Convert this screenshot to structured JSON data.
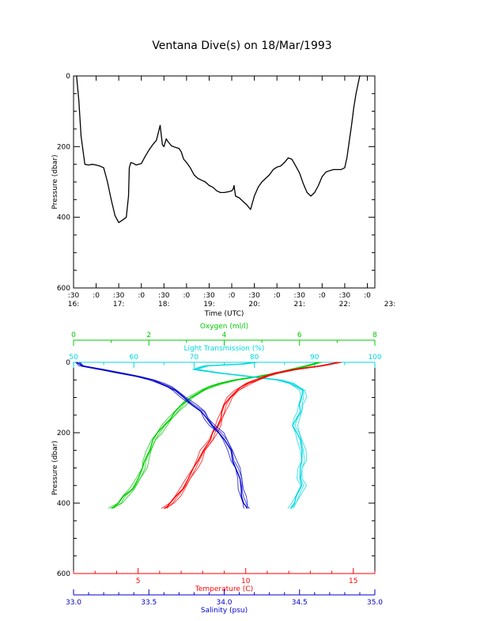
{
  "title": "Ventana Dive(s) on 18/Mar/1993",
  "chart_data": [
    {
      "type": "line",
      "xlabel": "Time (UTC)",
      "ylabel": "Pressure (dbar)",
      "ylim": [
        600,
        0
      ],
      "y_inverted": true,
      "xlim": [
        "16:30",
        "23:10"
      ],
      "x_minor_labels": [
        ":30",
        ":0",
        ":30",
        ":0",
        ":30",
        ":0",
        ":30",
        ":0",
        ":30",
        ":0",
        ":30",
        ":0",
        ":30",
        ":0"
      ],
      "x_hour_labels": [
        "16:",
        "17:",
        "18:",
        "19:",
        "20:",
        "21:",
        "22:",
        "23:"
      ],
      "y_ticks": [
        "0",
        "200",
        "400",
        "600"
      ],
      "series": [
        {
          "color": "#000000",
          "x": [
            "16:34",
            "16:37",
            "16:40",
            "16:45",
            "16:50",
            "16:55",
            "17:00",
            "17:05",
            "17:10",
            "17:15",
            "17:20",
            "17:25",
            "17:30",
            "17:35",
            "17:40",
            "17:43",
            "17:44",
            "17:46",
            "17:50",
            "17:53",
            "17:56",
            "18:00",
            "18:05",
            "18:10",
            "18:15",
            "18:20",
            "18:25",
            "18:28",
            "18:30",
            "18:33",
            "18:35",
            "18:40",
            "18:45",
            "18:50",
            "18:53",
            "18:56",
            "19:00",
            "19:05",
            "19:10",
            "19:15",
            "19:20",
            "19:25",
            "19:30",
            "19:35",
            "19:40",
            "19:45",
            "19:50",
            "19:55",
            "20:00",
            "20:02",
            "20:03",
            "20:05",
            "20:10",
            "20:15",
            "20:20",
            "20:25",
            "20:30",
            "20:35",
            "20:40",
            "20:45",
            "20:50",
            "20:55",
            "21:00",
            "21:05",
            "21:10",
            "21:15",
            "21:20",
            "21:25",
            "21:30",
            "21:35",
            "21:40",
            "21:45",
            "21:50",
            "21:55",
            "22:00",
            "22:05",
            "22:10",
            "22:15",
            "22:20",
            "22:25",
            "22:30",
            "22:33",
            "22:36",
            "22:39",
            "22:42",
            "22:45",
            "22:48",
            "22:50",
            "22:51"
          ],
          "y": [
            0,
            70,
            170,
            250,
            252,
            250,
            252,
            255,
            260,
            300,
            350,
            395,
            415,
            408,
            400,
            340,
            260,
            245,
            248,
            252,
            250,
            248,
            228,
            210,
            195,
            182,
            140,
            195,
            200,
            178,
            185,
            198,
            202,
            205,
            215,
            235,
            245,
            260,
            280,
            290,
            295,
            300,
            310,
            315,
            325,
            330,
            330,
            328,
            325,
            320,
            310,
            340,
            345,
            355,
            365,
            378,
            340,
            315,
            300,
            290,
            280,
            265,
            258,
            255,
            245,
            232,
            236,
            255,
            275,
            305,
            330,
            340,
            330,
            310,
            285,
            272,
            268,
            265,
            265,
            265,
            260,
            230,
            185,
            140,
            90,
            50,
            20,
            0,
            0
          ]
        }
      ]
    },
    {
      "type": "line",
      "ylabel": "Pressure (dbar)",
      "ylim": [
        600,
        0
      ],
      "y_inverted": true,
      "y_ticks": [
        "0",
        "200",
        "400",
        "600"
      ],
      "axes": [
        {
          "label": "Oxygen (ml/l)",
          "color": "#00cc00",
          "range": [
            0,
            8
          ],
          "ticks": [
            "0",
            "2",
            "4",
            "6",
            "8"
          ],
          "position": "top-1"
        },
        {
          "label": "Light Transmission (%)",
          "color": "#00d8e0",
          "range": [
            50,
            100
          ],
          "ticks": [
            "50",
            "60",
            "70",
            "80",
            "90",
            "100"
          ],
          "position": "top-2"
        },
        {
          "label": "Temperature (C)",
          "color": "#ff0000",
          "range": [
            2,
            16
          ],
          "ticks": [
            "5",
            "10",
            "15"
          ],
          "position": "bottom-1"
        },
        {
          "label": "Salinity (psu)",
          "color": "#0000cc",
          "range": [
            33.0,
            35.0
          ],
          "ticks": [
            "33.0",
            "33.5",
            "34.0",
            "34.5",
            "35.0"
          ],
          "position": "bottom-2"
        }
      ],
      "series": [
        {
          "axis": "Oxygen (ml/l)",
          "color": "#00cc00",
          "pressure": [
            0,
            10,
            20,
            30,
            40,
            50,
            60,
            70,
            80,
            100,
            120,
            140,
            160,
            180,
            200,
            220,
            250,
            280,
            300,
            330,
            360,
            380,
            400,
            410,
            415
          ],
          "values": [
            6.5,
            6.2,
            5.8,
            5.4,
            4.9,
            4.3,
            3.9,
            3.6,
            3.4,
            3.1,
            2.9,
            2.7,
            2.55,
            2.4,
            2.25,
            2.1,
            2.0,
            1.9,
            1.85,
            1.7,
            1.55,
            1.35,
            1.2,
            1.05,
            1.0
          ]
        },
        {
          "axis": "Light Transmission (%)",
          "color": "#00d8e0",
          "pressure": [
            0,
            5,
            10,
            20,
            30,
            40,
            50,
            60,
            70,
            80,
            100,
            120,
            140,
            160,
            180,
            200,
            220,
            250,
            280,
            300,
            330,
            350,
            380,
            400,
            415
          ],
          "values": [
            80,
            78,
            72,
            70,
            74,
            79,
            84,
            86,
            87,
            88,
            88,
            87.5,
            87.5,
            87,
            86.5,
            87,
            87.5,
            88,
            88,
            87.5,
            87.5,
            88,
            87,
            86.5,
            86
          ]
        },
        {
          "axis": "Temperature (C)",
          "color": "#ff0000",
          "pressure": [
            0,
            10,
            20,
            30,
            40,
            50,
            60,
            70,
            80,
            100,
            120,
            140,
            160,
            180,
            200,
            220,
            250,
            280,
            300,
            330,
            360,
            380,
            400,
            410,
            415
          ],
          "values": [
            14.3,
            13.5,
            12.3,
            11.4,
            10.9,
            10.5,
            10.1,
            9.8,
            9.55,
            9.25,
            9.05,
            8.9,
            8.8,
            8.7,
            8.5,
            8.35,
            8.0,
            7.8,
            7.6,
            7.3,
            7.05,
            6.8,
            6.5,
            6.3,
            6.2
          ]
        },
        {
          "axis": "Salinity (psu)",
          "color": "#0000cc",
          "pressure": [
            0,
            10,
            20,
            30,
            40,
            50,
            60,
            70,
            80,
            100,
            120,
            140,
            160,
            180,
            200,
            220,
            250,
            280,
            300,
            330,
            360,
            380,
            400,
            410,
            415
          ],
          "values": [
            33.02,
            33.05,
            33.18,
            33.3,
            33.42,
            33.52,
            33.58,
            33.63,
            33.67,
            33.73,
            33.79,
            33.85,
            33.88,
            33.92,
            33.97,
            34.0,
            34.04,
            34.06,
            34.08,
            34.1,
            34.11,
            34.12,
            34.13,
            34.14,
            34.15
          ]
        }
      ]
    }
  ]
}
